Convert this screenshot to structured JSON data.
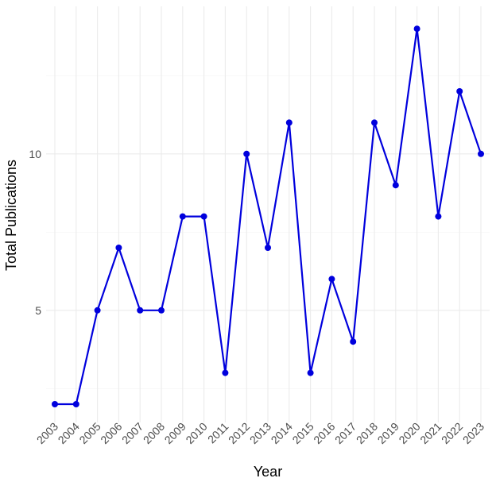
{
  "chart_data": {
    "type": "line",
    "title": "",
    "xlabel": "Year",
    "ylabel": "Total Publications",
    "x": [
      "2003",
      "2004",
      "2005",
      "2006",
      "2007",
      "2008",
      "2009",
      "2010",
      "2011",
      "2012",
      "2013",
      "2014",
      "2015",
      "2016",
      "2017",
      "2018",
      "2019",
      "2020",
      "2021",
      "2022",
      "2023"
    ],
    "series": [
      {
        "values": [
          2,
          2,
          5,
          7,
          5,
          5,
          8,
          8,
          3,
          10,
          7,
          11,
          3,
          6,
          4,
          11,
          9,
          14,
          8,
          12,
          10
        ]
      }
    ],
    "y_ticks": [
      5,
      10
    ],
    "ylim": [
      1.4,
      14.6
    ],
    "grid": true,
    "line_color": "#0000dd",
    "marker_color": "#0000dd"
  }
}
